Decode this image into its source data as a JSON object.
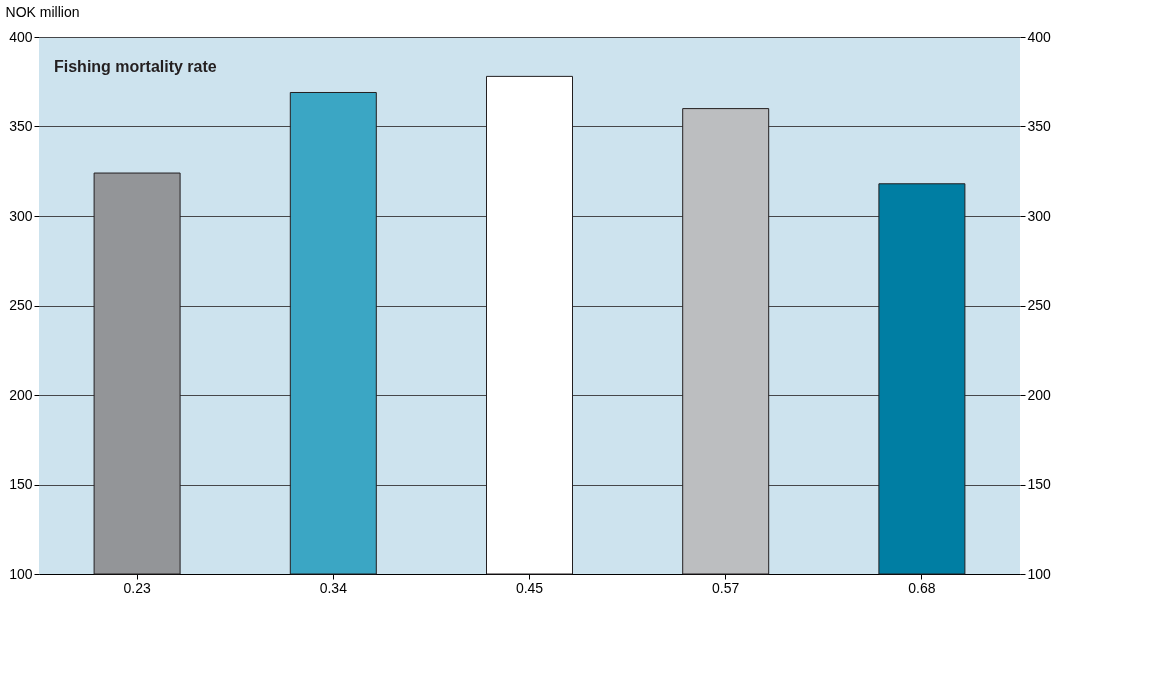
{
  "chart_data": {
    "type": "bar",
    "title": "Fishing mortality rate",
    "ylabel": "NOK million",
    "categories": [
      "0.23",
      "0.34",
      "0.45",
      "0.57",
      "0.68"
    ],
    "values": [
      324,
      369,
      378,
      360,
      318
    ],
    "colors": [
      "#939598",
      "#3ba6c4",
      "#ffffff",
      "#bcbec0",
      "#007ea3"
    ],
    "ylim": [
      100,
      400
    ],
    "yticks": [
      100,
      150,
      200,
      250,
      300,
      350,
      400
    ],
    "y2lim": [
      100,
      400
    ],
    "y2ticks": [
      100,
      150,
      200,
      250,
      300,
      350,
      400
    ],
    "grid": "y"
  }
}
